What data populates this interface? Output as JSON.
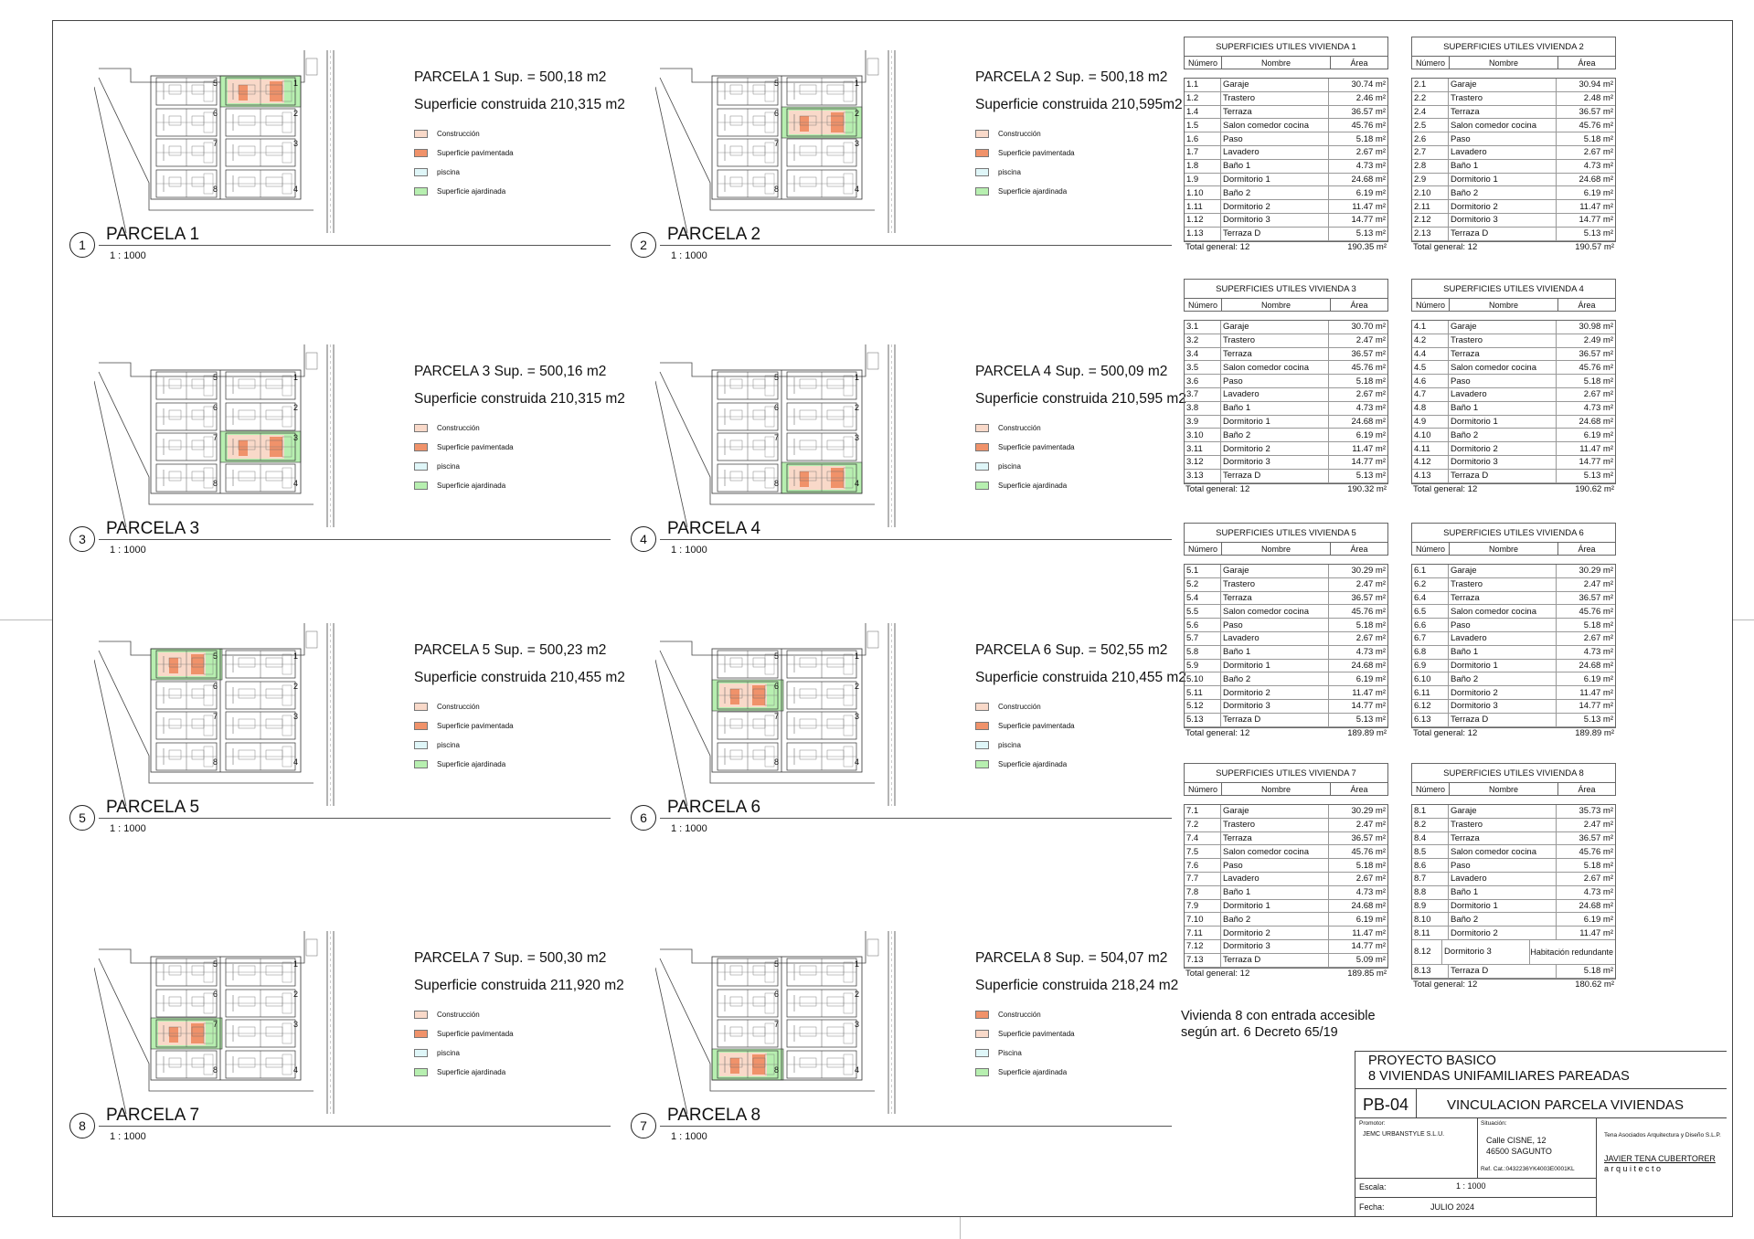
{
  "parcelas": [
    {
      "num": "1",
      "title": "PARCELA 1 Sup. = 500,18 m2",
      "built": "Superficie construida 210,315 m2",
      "name": "PARCELA 1",
      "scale": "1 : 1000",
      "hl": 1
    },
    {
      "num": "2",
      "title": "PARCELA 2 Sup. = 500,18 m2",
      "built": "Superficie construida 210,595m2",
      "name": "PARCELA 2",
      "scale": "1 : 1000",
      "hl": 2
    },
    {
      "num": "3",
      "title": "PARCELA 3 Sup. = 500,16 m2",
      "built": "Superficie construida 210,315 m2",
      "name": "PARCELA 3",
      "scale": "1 : 1000",
      "hl": 3
    },
    {
      "num": "4",
      "title": "PARCELA 4 Sup. = 500,09 m2",
      "built": "Superficie construida 210,595 m2",
      "name": "PARCELA 4",
      "scale": "1 : 1000",
      "hl": 4
    },
    {
      "num": "5",
      "title": "PARCELA 5 Sup. = 500,23 m2",
      "built": "Superficie construida 210,455 m2",
      "name": "PARCELA 5",
      "scale": "1 : 1000",
      "hl": 5
    },
    {
      "num": "6",
      "title": "PARCELA 6 Sup. = 502,55 m2",
      "built": "Superficie construida 210,455 m2",
      "name": "PARCELA 6",
      "scale": "1 : 1000",
      "hl": 6
    },
    {
      "num": "8",
      "title": "PARCELA 7 Sup. = 500,30 m2",
      "built": "Superficie construida 211,920 m2",
      "name": "PARCELA 7",
      "scale": "1 : 1000",
      "hl": 7
    },
    {
      "num": "7",
      "title": "PARCELA 8 Sup. = 504,07 m2",
      "built": "Superficie construida 218,24 m2",
      "name": "PARCELA 8",
      "scale": "1 : 1000",
      "hl": 8
    }
  ],
  "legend": [
    "Construcción",
    "Superficie pavimentada",
    "piscina",
    "Superficie ajardinada"
  ],
  "legend8": [
    "Construcción",
    "Superficie pavimentada",
    "Piscina",
    "Superficie ajardinada"
  ],
  "colors": {
    "construccion": "#f9d9c9",
    "pavimentada": "#f0926a",
    "piscina": "#dff6f8",
    "ajardinada": "#b7efb0",
    "construccion8": "#f0926a",
    "pavimentada8": "#f9d9c9"
  },
  "table_headers": {
    "numero": "Número",
    "nombre": "Nombre",
    "area": "Área"
  },
  "tables": [
    {
      "title": "SUPERFICIES UTILES VIVIENDA 1",
      "rows": [
        [
          "1.1",
          "Garaje",
          "30.74 m²"
        ],
        [
          "1.2",
          "Trastero",
          "2.46 m²"
        ],
        [
          "1.4",
          "Terraza",
          "36.57 m²"
        ],
        [
          "1.5",
          "Salon comedor cocina",
          "45.76 m²"
        ],
        [
          "1.6",
          "Paso",
          "5.18 m²"
        ],
        [
          "1.7",
          "Lavadero",
          "2.67 m²"
        ],
        [
          "1.8",
          "Baño 1",
          "4.73 m²"
        ],
        [
          "1.9",
          "Dormitorio 1",
          "24.68 m²"
        ],
        [
          "1.10",
          "Baño 2",
          "6.19 m²"
        ],
        [
          "1.11",
          "Dormitorio 2",
          "11.47 m²"
        ],
        [
          "1.12",
          "Dormitorio 3",
          "14.77 m²"
        ],
        [
          "1.13",
          "Terraza D",
          "5.13 m²"
        ]
      ],
      "total_label": "Total general: 12",
      "total": "190.35 m²"
    },
    {
      "title": "SUPERFICIES UTILES VIVIENDA  2",
      "rows": [
        [
          "2.1",
          "Garaje",
          "30.94 m²"
        ],
        [
          "2.2",
          "Trastero",
          "2.48 m²"
        ],
        [
          "2.4",
          "Terraza",
          "36.57 m²"
        ],
        [
          "2.5",
          "Salon comedor cocina",
          "45.76 m²"
        ],
        [
          "2.6",
          "Paso",
          "5.18 m²"
        ],
        [
          "2.7",
          "Lavadero",
          "2.67 m²"
        ],
        [
          "2.8",
          "Baño 1",
          "4.73 m²"
        ],
        [
          "2.9",
          "Dormitorio 1",
          "24.68 m²"
        ],
        [
          "2.10",
          "Baño 2",
          "6.19 m²"
        ],
        [
          "2.11",
          "Dormitorio 2",
          "11.47 m²"
        ],
        [
          "2.12",
          "Dormitorio 3",
          "14.77 m²"
        ],
        [
          "2.13",
          "Terraza D",
          "5.13 m²"
        ]
      ],
      "total_label": "Total general: 12",
      "total": "190.57 m²"
    },
    {
      "title": "SUPERFICIES UTILES VIVIENDA  3",
      "rows": [
        [
          "3.1",
          "Garaje",
          "30.70 m²"
        ],
        [
          "3.2",
          "Trastero",
          "2.47 m²"
        ],
        [
          "3.4",
          "Terraza",
          "36.57 m²"
        ],
        [
          "3.5",
          "Salon comedor cocina",
          "45.76 m²"
        ],
        [
          "3.6",
          "Paso",
          "5.18 m²"
        ],
        [
          "3.7",
          "Lavadero",
          "2.67 m²"
        ],
        [
          "3.8",
          "Baño 1",
          "4.73 m²"
        ],
        [
          "3.9",
          "Dormitorio 1",
          "24.68 m²"
        ],
        [
          "3.10",
          "Baño 2",
          "6.19 m²"
        ],
        [
          "3.11",
          "Dormitorio 2",
          "11.47 m²"
        ],
        [
          "3.12",
          "Dormitorio 3",
          "14.77 m²"
        ],
        [
          "3.13",
          "Terraza D",
          "5.13 m²"
        ]
      ],
      "total_label": "Total general: 12",
      "total": "190.32 m²"
    },
    {
      "title": "SUPERFICIES UTILES VIVIENDA  4",
      "rows": [
        [
          "4.1",
          "Garaje",
          "30.98 m²"
        ],
        [
          "4.2",
          "Trastero",
          "2.49 m²"
        ],
        [
          "4.4",
          "Terraza",
          "36.57 m²"
        ],
        [
          "4.5",
          "Salon comedor cocina",
          "45.76 m²"
        ],
        [
          "4.6",
          "Paso",
          "5.18 m²"
        ],
        [
          "4.7",
          "Lavadero",
          "2.67 m²"
        ],
        [
          "4.8",
          "Baño 1",
          "4.73 m²"
        ],
        [
          "4.9",
          "Dormitorio 1",
          "24.68 m²"
        ],
        [
          "4.10",
          "Baño 2",
          "6.19 m²"
        ],
        [
          "4.11",
          "Dormitorio 2",
          "11.47 m²"
        ],
        [
          "4.12",
          "Dormitorio 3",
          "14.77 m²"
        ],
        [
          "4.13",
          "Terraza D",
          "5.13 m²"
        ]
      ],
      "total_label": "Total general: 12",
      "total": "190.62 m²"
    },
    {
      "title": "SUPERFICIES UTILES VIVIENDA  5",
      "rows": [
        [
          "5.1",
          "Garaje",
          "30.29 m²"
        ],
        [
          "5.2",
          "Trastero",
          "2.47 m²"
        ],
        [
          "5.4",
          "Terraza",
          "36.57 m²"
        ],
        [
          "5.5",
          "Salon comedor cocina",
          "45.76 m²"
        ],
        [
          "5.6",
          "Paso",
          "5.18 m²"
        ],
        [
          "5.7",
          "Lavadero",
          "2.67 m²"
        ],
        [
          "5.8",
          "Baño 1",
          "4.73 m²"
        ],
        [
          "5.9",
          "Dormitorio 1",
          "24.68 m²"
        ],
        [
          "5.10",
          "Baño 2",
          "6.19 m²"
        ],
        [
          "5.11",
          "Dormitorio 2",
          "11.47 m²"
        ],
        [
          "5.12",
          "Dormitorio 3",
          "14.77 m²"
        ],
        [
          "5.13",
          "Terraza D",
          "5.13 m²"
        ]
      ],
      "total_label": "Total general: 12",
      "total": "189.89 m²"
    },
    {
      "title": "SUPERFICIES UTILES VIVIENDA  6",
      "rows": [
        [
          "6.1",
          "Garaje",
          "30.29 m²"
        ],
        [
          "6.2",
          "Trastero",
          "2.47 m²"
        ],
        [
          "6.4",
          "Terraza",
          "36.57 m²"
        ],
        [
          "6.5",
          "Salon comedor cocina",
          "45.76 m²"
        ],
        [
          "6.6",
          "Paso",
          "5.18 m²"
        ],
        [
          "6.7",
          "Lavadero",
          "2.67 m²"
        ],
        [
          "6.8",
          "Baño 1",
          "4.73 m²"
        ],
        [
          "6.9",
          "Dormitorio 1",
          "24.68 m²"
        ],
        [
          "6.10",
          "Baño 2",
          "6.19 m²"
        ],
        [
          "6.11",
          "Dormitorio 2",
          "11.47 m²"
        ],
        [
          "6.12",
          "Dormitorio 3",
          "14.77 m²"
        ],
        [
          "6.13",
          "Terraza D",
          "5.13 m²"
        ]
      ],
      "total_label": "Total general: 12",
      "total": "189.89 m²"
    },
    {
      "title": "SUPERFICIES UTILES VIVIENDA  7",
      "rows": [
        [
          "7.1",
          "Garaje",
          "30.29 m²"
        ],
        [
          "7.2",
          "Trastero",
          "2.47 m²"
        ],
        [
          "7.4",
          "Terraza",
          "36.57 m²"
        ],
        [
          "7.5",
          "Salon comedor cocina",
          "45.76 m²"
        ],
        [
          "7.6",
          "Paso",
          "5.18 m²"
        ],
        [
          "7.7",
          "Lavadero",
          "2.67 m²"
        ],
        [
          "7.8",
          "Baño 1",
          "4.73 m²"
        ],
        [
          "7.9",
          "Dormitorio 1",
          "24.68 m²"
        ],
        [
          "7.10",
          "Baño 2",
          "6.19 m²"
        ],
        [
          "7.11",
          "Dormitorio 2",
          "11.47 m²"
        ],
        [
          "7.12",
          "Dormitorio 3",
          "14.77 m²"
        ],
        [
          "7.13",
          "Terraza D",
          "5.09 m²"
        ]
      ],
      "total_label": "Total general: 12",
      "total": "189.85 m²"
    },
    {
      "title": "SUPERFICIES UTILES VIVIENDA  8",
      "rows": [
        [
          "8.1",
          "Garaje",
          "35.73 m²"
        ],
        [
          "8.2",
          "Trastero",
          "2.47 m²"
        ],
        [
          "8.4",
          "Terraza",
          "36.57 m²"
        ],
        [
          "8.5",
          "Salon comedor cocina",
          "45.76 m²"
        ],
        [
          "8.6",
          "Paso",
          "5.18 m²"
        ],
        [
          "8.7",
          "Lavadero",
          "2.67 m²"
        ],
        [
          "8.8",
          "Baño 1",
          "4.73 m²"
        ],
        [
          "8.9",
          "Dormitorio 1",
          "24.68 m²"
        ],
        [
          "8.10",
          "Baño 2",
          "6.19 m²"
        ],
        [
          "8.11",
          "Dormitorio 2",
          "11.47 m²"
        ],
        [
          "8.12",
          "Dormitorio 3",
          "Habitación redundante"
        ],
        [
          "8.13",
          "Terraza D",
          "5.18 m²"
        ]
      ],
      "total_label": "Total general: 12",
      "total": "180.62 m²"
    }
  ],
  "note_line1": "Vivienda 8 con entrada accesible",
  "note_line2": "según art. 6 Decreto 65/19",
  "titleblock": {
    "project_line1": "PROYECTO BASICO",
    "project_line2": "8 VIVIENDAS UNIFAMILIARES   PAREADAS",
    "code": "PB-04",
    "drawing_title": "VINCULACION PARCELA VIVIENDAS",
    "promotor_label": "Promotor:",
    "promotor": "JEMC URBANSTYLE S.L.U.",
    "situacion_label": "Situación:",
    "address1": "Calle  CISNE, 12",
    "address2": "46500   SAGUNTO",
    "ref_cat": "Ref. Cat.:0432236YK4003E0001KL",
    "firm": "Tena Asociados Arquitectura y Diseño S.L.P.",
    "architect": "JAVIER TENA CUBERTORER",
    "architect_sub": "a r q u i t e c t o",
    "escala_label": "Escala:",
    "escala": "1 : 1000",
    "fecha_label": "Fecha:",
    "fecha": "JULIO 2024"
  }
}
